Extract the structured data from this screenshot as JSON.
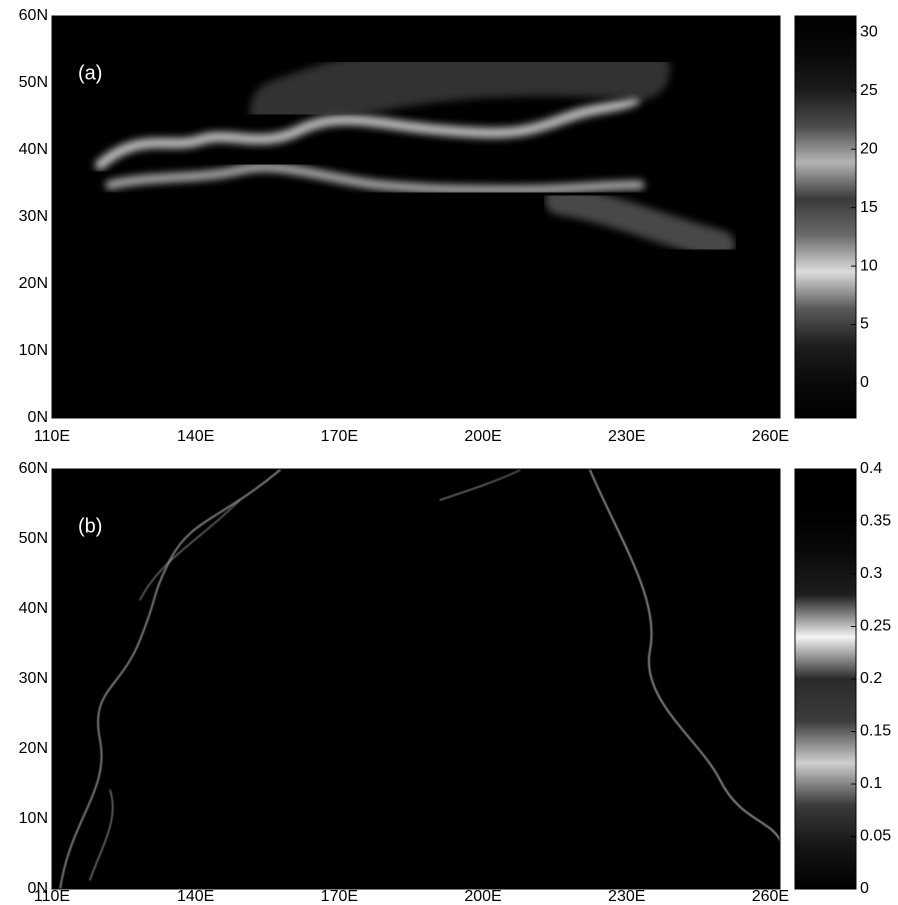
{
  "chart_data": [
    {
      "type": "heatmap",
      "label": "(a)",
      "xlim": [
        110,
        262
      ],
      "ylim": [
        0,
        60
      ],
      "xticks": [
        {
          "value": 110,
          "label": "110E"
        },
        {
          "value": 140,
          "label": "140E"
        },
        {
          "value": 170,
          "label": "170E"
        },
        {
          "value": 200,
          "label": "200E"
        },
        {
          "value": 230,
          "label": "230E"
        },
        {
          "value": 260,
          "label": "260E"
        }
      ],
      "yticks": [
        {
          "value": 0,
          "label": "0N"
        },
        {
          "value": 10,
          "label": "10N"
        },
        {
          "value": 20,
          "label": "20N"
        },
        {
          "value": 30,
          "label": "30N"
        },
        {
          "value": 40,
          "label": "40N"
        },
        {
          "value": 50,
          "label": "50N"
        },
        {
          "value": 60,
          "label": "60N"
        }
      ],
      "clim": [
        -3,
        31.4
      ],
      "cticks": [
        0,
        5,
        10,
        15,
        20,
        25,
        30
      ],
      "colormap": [
        "#000000",
        "#0a0a0a",
        "#1e1e1e",
        "#5a5a5a",
        "#dcdcdc",
        "#6a6a6a",
        "#3a3a3a",
        "#b4b4b4",
        "#4a4a4a",
        "#1a1a1a",
        "#080808",
        "#000000"
      ]
    },
    {
      "type": "heatmap",
      "label": "(b)",
      "xlim": [
        110,
        262
      ],
      "ylim": [
        0,
        60
      ],
      "xticks": [
        {
          "value": 110,
          "label": "110E"
        },
        {
          "value": 140,
          "label": "140E"
        },
        {
          "value": 170,
          "label": "170E"
        },
        {
          "value": 200,
          "label": "200E"
        },
        {
          "value": 230,
          "label": "230E"
        },
        {
          "value": 260,
          "label": "260E"
        }
      ],
      "yticks": [
        {
          "value": 0,
          "label": "0N"
        },
        {
          "value": 10,
          "label": "10N"
        },
        {
          "value": 20,
          "label": "20N"
        },
        {
          "value": 30,
          "label": "30N"
        },
        {
          "value": 40,
          "label": "40N"
        },
        {
          "value": 50,
          "label": "50N"
        },
        {
          "value": 60,
          "label": "60N"
        }
      ],
      "clim": [
        0,
        0.4
      ],
      "cticks": [
        0,
        0.05,
        0.1,
        0.15,
        0.2,
        0.25,
        0.3,
        0.35,
        0.4
      ],
      "colormap": [
        "#000000",
        "#151515",
        "#3a3a3a",
        "#cfcfcf",
        "#3c3c3c",
        "#2a2a2a",
        "#f4f4f4",
        "#1e1e1e",
        "#0a0a0a",
        "#000000",
        "#000000"
      ]
    }
  ]
}
